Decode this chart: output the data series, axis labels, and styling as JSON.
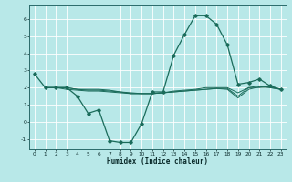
{
  "xlabel": "Humidex (Indice chaleur)",
  "background_color": "#b8e8e8",
  "grid_color": "#ffffff",
  "line_color": "#1a6b5a",
  "xlim": [
    -0.5,
    23.5
  ],
  "ylim": [
    -1.6,
    6.8
  ],
  "yticks": [
    -1,
    0,
    1,
    2,
    3,
    4,
    5,
    6
  ],
  "xticks": [
    0,
    1,
    2,
    3,
    4,
    5,
    6,
    7,
    8,
    9,
    10,
    11,
    12,
    13,
    14,
    15,
    16,
    17,
    18,
    19,
    20,
    21,
    22,
    23
  ],
  "main_line": {
    "x": [
      0,
      1,
      2,
      3,
      4,
      5,
      6,
      7,
      8,
      9,
      10,
      11,
      12,
      13,
      14,
      15,
      16,
      17,
      18,
      19,
      20,
      21,
      22,
      23
    ],
    "y": [
      2.8,
      2.0,
      2.0,
      2.0,
      1.5,
      0.5,
      0.7,
      -1.1,
      -1.2,
      -1.2,
      -0.1,
      1.75,
      1.75,
      3.9,
      5.1,
      6.2,
      6.2,
      5.7,
      4.5,
      2.2,
      2.3,
      2.5,
      2.1,
      1.9
    ]
  },
  "flat_lines": [
    {
      "x": [
        1,
        2,
        3,
        4,
        5,
        6,
        7,
        8,
        9,
        10,
        11,
        12,
        13,
        14,
        15,
        16,
        17,
        18,
        19,
        20,
        21,
        22,
        23
      ],
      "y": [
        2.0,
        2.0,
        1.9,
        1.85,
        1.8,
        1.8,
        1.75,
        1.7,
        1.65,
        1.65,
        1.65,
        1.7,
        1.75,
        1.8,
        1.85,
        1.9,
        1.95,
        1.9,
        1.4,
        1.9,
        2.05,
        2.0,
        1.9
      ]
    },
    {
      "x": [
        1,
        2,
        3,
        4,
        5,
        6,
        7,
        8,
        9,
        10,
        11,
        12,
        13,
        14,
        15,
        16,
        17,
        18,
        19,
        20,
        21,
        22,
        23
      ],
      "y": [
        2.0,
        2.0,
        2.0,
        1.9,
        1.85,
        1.85,
        1.8,
        1.75,
        1.7,
        1.65,
        1.65,
        1.7,
        1.75,
        1.8,
        1.85,
        1.9,
        1.95,
        1.95,
        1.5,
        2.0,
        2.1,
        2.0,
        1.9
      ]
    },
    {
      "x": [
        1,
        2,
        3,
        4,
        5,
        6,
        7,
        8,
        9,
        10,
        11,
        12,
        13,
        14,
        15,
        16,
        17,
        18,
        19,
        20,
        21,
        22,
        23
      ],
      "y": [
        2.0,
        2.0,
        2.0,
        1.9,
        1.9,
        1.9,
        1.85,
        1.75,
        1.65,
        1.65,
        1.65,
        1.7,
        1.8,
        1.85,
        1.9,
        2.0,
        2.0,
        2.0,
        1.7,
        2.0,
        2.0,
        2.05,
        1.9
      ]
    }
  ]
}
